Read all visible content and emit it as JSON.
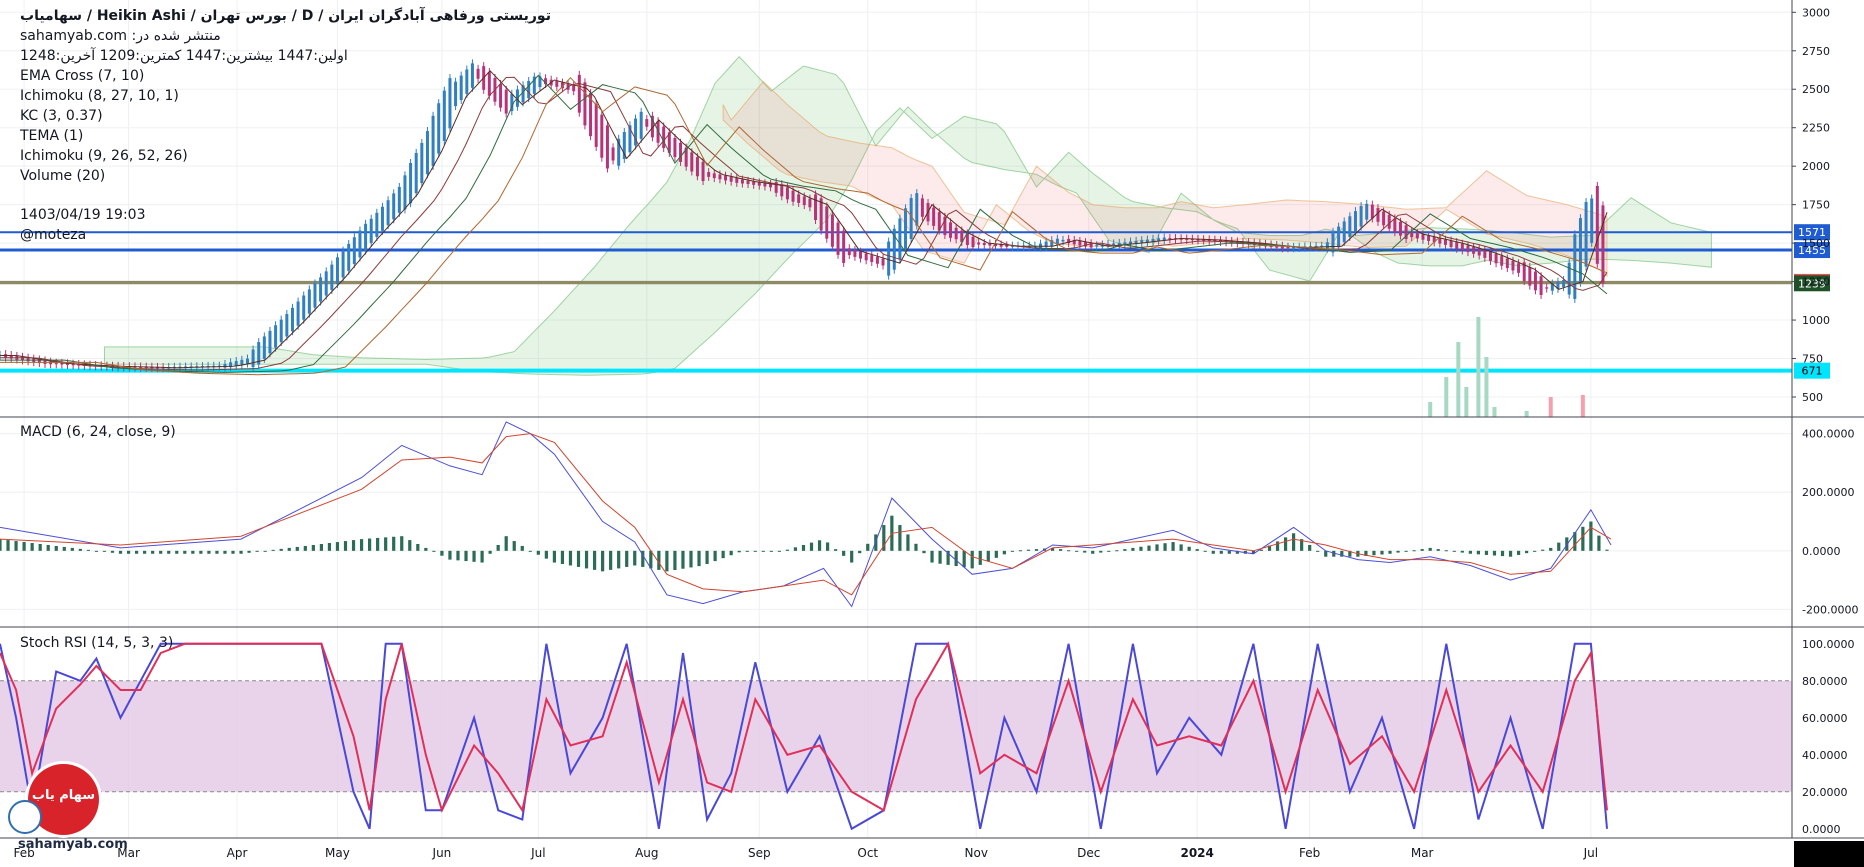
{
  "header": {
    "title_line": "توریستی ورفاهی آبادگران ایران / D / بورس تهران / Heikin Ashi / سهامیاب",
    "published_on": "منتشر شده در: sahamyab.com",
    "ohlc_line": "اولین:1447 بیشترین:1447 کمترین:1209 آخرین:1248"
  },
  "legend": [
    "EMA Cross (7, 10)",
    "Ichimoku (8, 27, 10, 1)",
    "KC (3, 0.37)",
    "TEMA (1)",
    "Ichimoku (9, 26, 52, 26)",
    "Volume (20)"
  ],
  "timestamp": "1403/04/19 19:03",
  "author": "@moteza",
  "watermark": "sahamyab.com",
  "logo_text": "سهام یاب",
  "colors": {
    "candle_up": "#2f7fc2",
    "candle_down": "#b8327a",
    "kumo_green": "#4caf50",
    "kumo_red": "#ef5350",
    "cyan_line": "#00e5ff",
    "blue_line": "#1f5bd1",
    "olive_line": "#8d8a65",
    "macd": "#4c4fd6",
    "signal": "#d3452f",
    "histogram": "#2c6b55",
    "stoch_k": "#4a48d6",
    "stoch_d": "#e0305a",
    "stoch_band": "#e2c8e6"
  },
  "chart_data": [
    {
      "type": "line",
      "subtype": "heikin-ashi-candles",
      "x_labels": [
        "Feb",
        "Mar",
        "Apr",
        "May",
        "Jun",
        "Jul",
        "Aug",
        "Sep",
        "Oct",
        "Nov",
        "Dec",
        "2024",
        "Feb",
        "Mar",
        "Jul"
      ],
      "y_ticks": [
        500,
        750,
        1000,
        1250,
        1500,
        1750,
        2000,
        2250,
        2500,
        2750,
        3000
      ],
      "ylim": [
        370,
        3080
      ],
      "price_series": {
        "x": [
          0,
          12,
          25,
          40,
          55,
          62,
          72,
          82,
          91,
          96,
          100,
          106,
          112,
          118,
          126,
          134,
          143,
          152,
          160,
          166,
          175,
          184,
          192,
          197,
          202,
          210,
          220,
          228,
          236,
          242,
          250,
          258,
          264,
          272,
          280,
          290,
          300,
          310,
          320,
          330,
          340,
          350,
          360,
          369,
          378,
          384,
          390,
          396,
          401
        ],
        "y": [
          770,
          720,
          700,
          690,
          700,
          740,
          1000,
          1280,
          1560,
          1700,
          1820,
          2100,
          2450,
          2620,
          2400,
          2560,
          2500,
          2050,
          2300,
          2150,
          1950,
          1900,
          1870,
          1800,
          1750,
          1450,
          1370,
          1750,
          1580,
          1500,
          1480,
          1480,
          1520,
          1480,
          1500,
          1530,
          1520,
          1500,
          1470,
          1480,
          1720,
          1560,
          1500,
          1430,
          1330,
          1200,
          1250,
          1700,
          1248
        ]
      },
      "price_levels": [
        {
          "label": "1571",
          "value": 1571,
          "color": "#1f5bd1"
        },
        {
          "label": "1455",
          "value": 1455,
          "color": "#1f5bd1"
        },
        {
          "label": "1248",
          "value": 1248,
          "color": "#ef5350"
        },
        {
          "label": "1239",
          "value": 1239,
          "color": "#1e5128"
        },
        {
          "label": "671",
          "value": 671,
          "color": "#00e5ff"
        }
      ]
    },
    {
      "type": "line",
      "title": "MACD (6, 24, close, 9)",
      "y_ticks": [
        "400.0000",
        "200.0000",
        "0.0000",
        "-200.0000"
      ],
      "y_tick_values": [
        400,
        200,
        0,
        -200
      ],
      "ylim": [
        -260,
        450
      ],
      "x": [
        0,
        30,
        60,
        90,
        100,
        112,
        120,
        126,
        132,
        138,
        150,
        158,
        166,
        175,
        185,
        195,
        205,
        212,
        222,
        232,
        242,
        252,
        262,
        272,
        282,
        292,
        302,
        312,
        322,
        330,
        338,
        346,
        356,
        366,
        376,
        386,
        396,
        401
      ],
      "series": [
        {
          "name": "MACD",
          "values": [
            80,
            10,
            40,
            250,
            360,
            290,
            260,
            440,
            400,
            330,
            100,
            30,
            -150,
            -180,
            -140,
            -120,
            -60,
            -190,
            180,
            40,
            -80,
            -60,
            20,
            10,
            40,
            70,
            10,
            -10,
            80,
            0,
            -30,
            -40,
            -20,
            -50,
            -100,
            -60,
            140,
            20
          ]
        },
        {
          "name": "Signal",
          "values": [
            40,
            20,
            50,
            210,
            310,
            320,
            300,
            390,
            400,
            370,
            170,
            80,
            -80,
            -130,
            -140,
            -120,
            -100,
            -150,
            60,
            80,
            -20,
            -60,
            10,
            20,
            30,
            40,
            20,
            0,
            40,
            20,
            -10,
            -30,
            -30,
            -40,
            -80,
            -70,
            80,
            40
          ]
        }
      ],
      "histogram": {
        "x": [
          0,
          30,
          60,
          90,
          100,
          112,
          120,
          126,
          132,
          138,
          150,
          158,
          166,
          175,
          185,
          195,
          205,
          212,
          222,
          232,
          242,
          252,
          262,
          272,
          282,
          292,
          302,
          312,
          322,
          330,
          338,
          346,
          356,
          366,
          376,
          386,
          396,
          401
        ],
        "values": [
          40,
          -10,
          -10,
          40,
          50,
          -30,
          -40,
          50,
          0,
          -40,
          -70,
          -50,
          -70,
          -50,
          0,
          0,
          40,
          -40,
          120,
          -40,
          -60,
          0,
          10,
          -10,
          10,
          30,
          -10,
          -10,
          60,
          -20,
          -20,
          -10,
          10,
          -10,
          -20,
          10,
          100,
          -20
        ]
      }
    },
    {
      "type": "line",
      "title": "Stoch RSI (14, 5, 3, 3)",
      "y_ticks": [
        "100.0000",
        "80.0000",
        "60.0000",
        "40.0000",
        "20.0000",
        "0.0000"
      ],
      "y_tick_values": [
        100,
        80,
        60,
        40,
        20,
        0
      ],
      "ylim": [
        -5,
        108
      ],
      "band": [
        20,
        80
      ],
      "x": [
        0,
        4,
        8,
        14,
        20,
        24,
        30,
        35,
        40,
        46,
        52,
        80,
        88,
        92,
        96,
        100,
        106,
        110,
        118,
        124,
        130,
        136,
        142,
        150,
        156,
        164,
        170,
        176,
        182,
        188,
        196,
        204,
        212,
        220,
        228,
        236,
        244,
        250,
        258,
        266,
        274,
        282,
        288,
        296,
        304,
        312,
        320,
        328,
        336,
        344,
        352,
        360,
        368,
        376,
        384,
        392,
        396,
        400
      ],
      "series": [
        {
          "name": "K",
          "values": [
            100,
            60,
            10,
            85,
            80,
            92,
            60,
            80,
            100,
            100,
            100,
            100,
            20,
            0,
            100,
            100,
            10,
            10,
            60,
            10,
            5,
            100,
            30,
            60,
            100,
            0,
            95,
            5,
            30,
            90,
            20,
            50,
            0,
            10,
            100,
            100,
            0,
            60,
            20,
            100,
            0,
            100,
            30,
            60,
            40,
            100,
            0,
            100,
            20,
            60,
            0,
            100,
            5,
            60,
            0,
            100,
            100,
            0
          ]
        },
        {
          "name": "D",
          "values": [
            95,
            75,
            30,
            65,
            78,
            88,
            75,
            75,
            95,
            100,
            100,
            100,
            50,
            10,
            70,
            100,
            40,
            10,
            45,
            30,
            10,
            70,
            45,
            50,
            90,
            25,
            70,
            25,
            20,
            70,
            40,
            45,
            20,
            10,
            70,
            100,
            30,
            40,
            30,
            80,
            20,
            70,
            45,
            50,
            45,
            80,
            20,
            75,
            35,
            50,
            20,
            75,
            20,
            45,
            20,
            80,
            95,
            10
          ]
        }
      ]
    }
  ]
}
